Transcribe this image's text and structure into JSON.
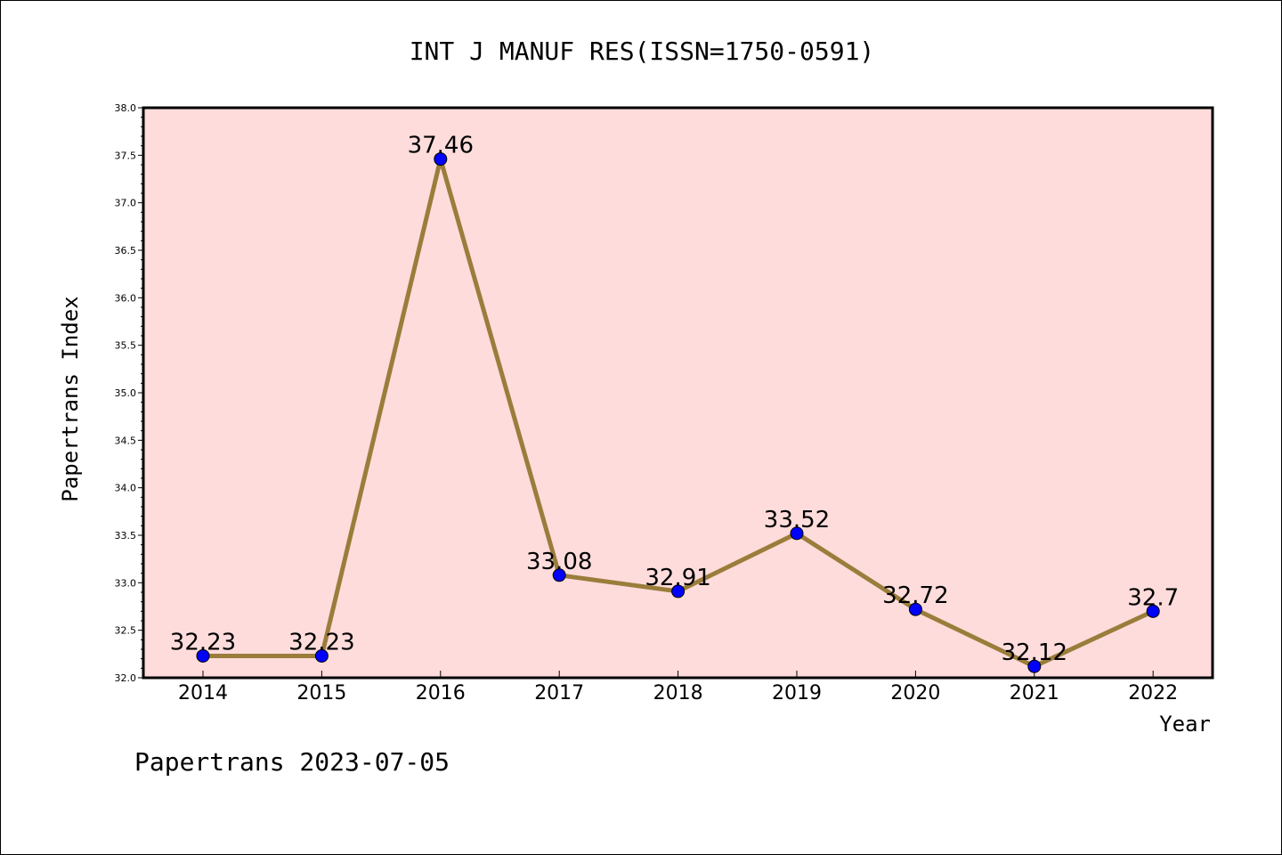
{
  "chart_data": {
    "type": "line",
    "title": "INT J MANUF RES(ISSN=1750-0591)",
    "xlabel": "Year",
    "ylabel": "Papertrans Index",
    "categories": [
      "2014",
      "2015",
      "2016",
      "2017",
      "2018",
      "2019",
      "2020",
      "2021",
      "2022"
    ],
    "series": [
      {
        "values": [
          32.23,
          32.23,
          37.46,
          33.08,
          32.91,
          33.52,
          32.72,
          32.12,
          32.7
        ],
        "labels": [
          "32.23",
          "32.23",
          "37.46",
          "33.08",
          "32.91",
          "33.52",
          "32.72",
          "32.12",
          "32.7"
        ]
      }
    ],
    "ylim": [
      32.0,
      38.0
    ],
    "yticks": [
      "32.0",
      "32.5",
      "33.0",
      "33.5",
      "34.0",
      "34.5",
      "35.0",
      "35.5",
      "36.0",
      "36.5",
      "37.0",
      "37.5",
      "38.0"
    ],
    "grid": false,
    "colors": {
      "plot_background": "#ffdcdc",
      "line": "#9a7d3a",
      "marker": "#0000ff"
    }
  },
  "footer": "Papertrans 2023-07-05"
}
